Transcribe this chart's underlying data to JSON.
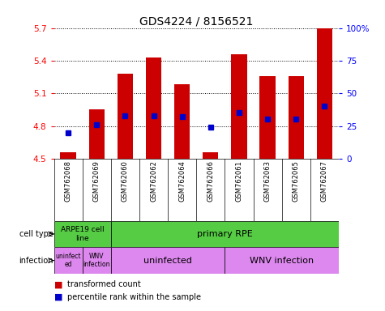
{
  "title": "GDS4224 / 8156521",
  "samples": [
    "GSM762068",
    "GSM762069",
    "GSM762060",
    "GSM762062",
    "GSM762064",
    "GSM762066",
    "GSM762061",
    "GSM762063",
    "GSM762065",
    "GSM762067"
  ],
  "transformed_count": [
    4.56,
    4.95,
    5.28,
    5.43,
    5.18,
    4.56,
    5.46,
    5.26,
    5.26,
    5.7
  ],
  "percentile_rank": [
    20,
    26,
    33,
    33,
    32,
    24,
    35,
    30,
    30,
    40
  ],
  "bar_bottom": 4.5,
  "ylim": [
    4.5,
    5.7
  ],
  "yticks": [
    4.5,
    4.8,
    5.1,
    5.4,
    5.7
  ],
  "right_yticks": [
    0,
    25,
    50,
    75,
    100
  ],
  "right_ylabels": [
    "0",
    "25",
    "50",
    "75",
    "100%"
  ],
  "bar_color": "#cc0000",
  "dot_color": "#0000cc",
  "bar_width": 0.55,
  "cell_color_arpe": "#55cc44",
  "cell_color_primary": "#55cc44",
  "infection_color": "#dd88ee",
  "bg_color": "#cccccc"
}
